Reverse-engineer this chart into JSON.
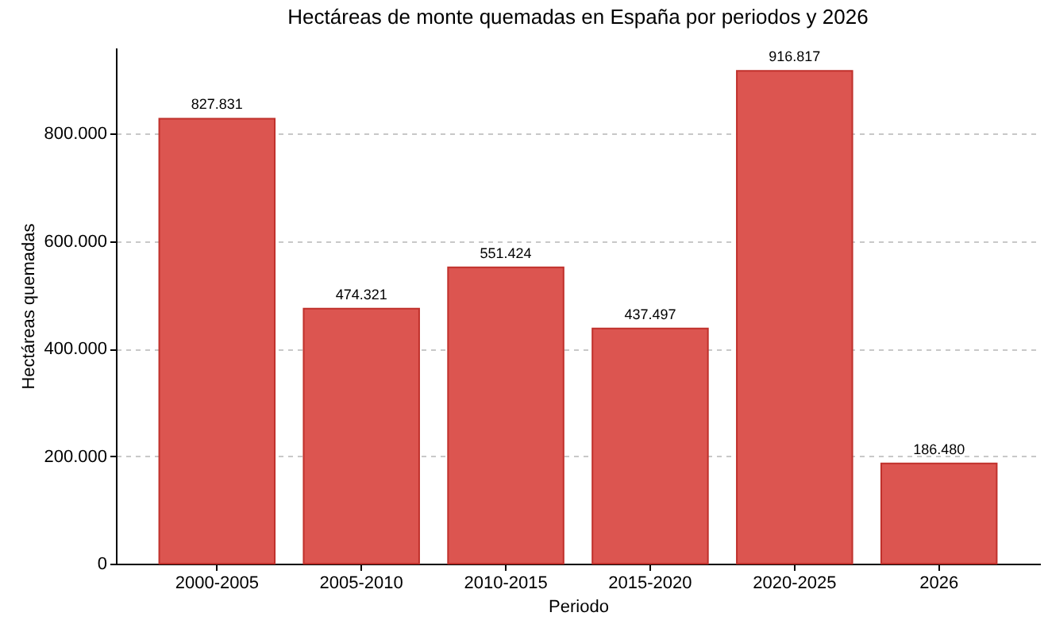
{
  "chart_data": {
    "type": "bar",
    "title": "Hectáreas de monte quemadas en España por periodos y 2026",
    "xlabel": "Periodo",
    "ylabel": "Hectáreas quemadas",
    "categories": [
      "2000-2005",
      "2005-2010",
      "2010-2015",
      "2015-2020",
      "2020-2025",
      "2026"
    ],
    "values": [
      827831,
      474321,
      551424,
      437497,
      916817,
      186480
    ],
    "value_labels": [
      "827.831",
      "474.321",
      "551.424",
      "437.497",
      "916.817",
      "186.480"
    ],
    "color": "#dc5550",
    "ylim": [
      0,
      960000
    ],
    "yticks": [
      0,
      {
        "value": 200000,
        "label": "200.000"
      },
      {
        "value": 400000,
        "label": "400.000"
      },
      {
        "value": 600000,
        "label": "600.000"
      },
      {
        "value": 800000,
        "label": "800.000"
      }
    ],
    "grid": "y"
  }
}
